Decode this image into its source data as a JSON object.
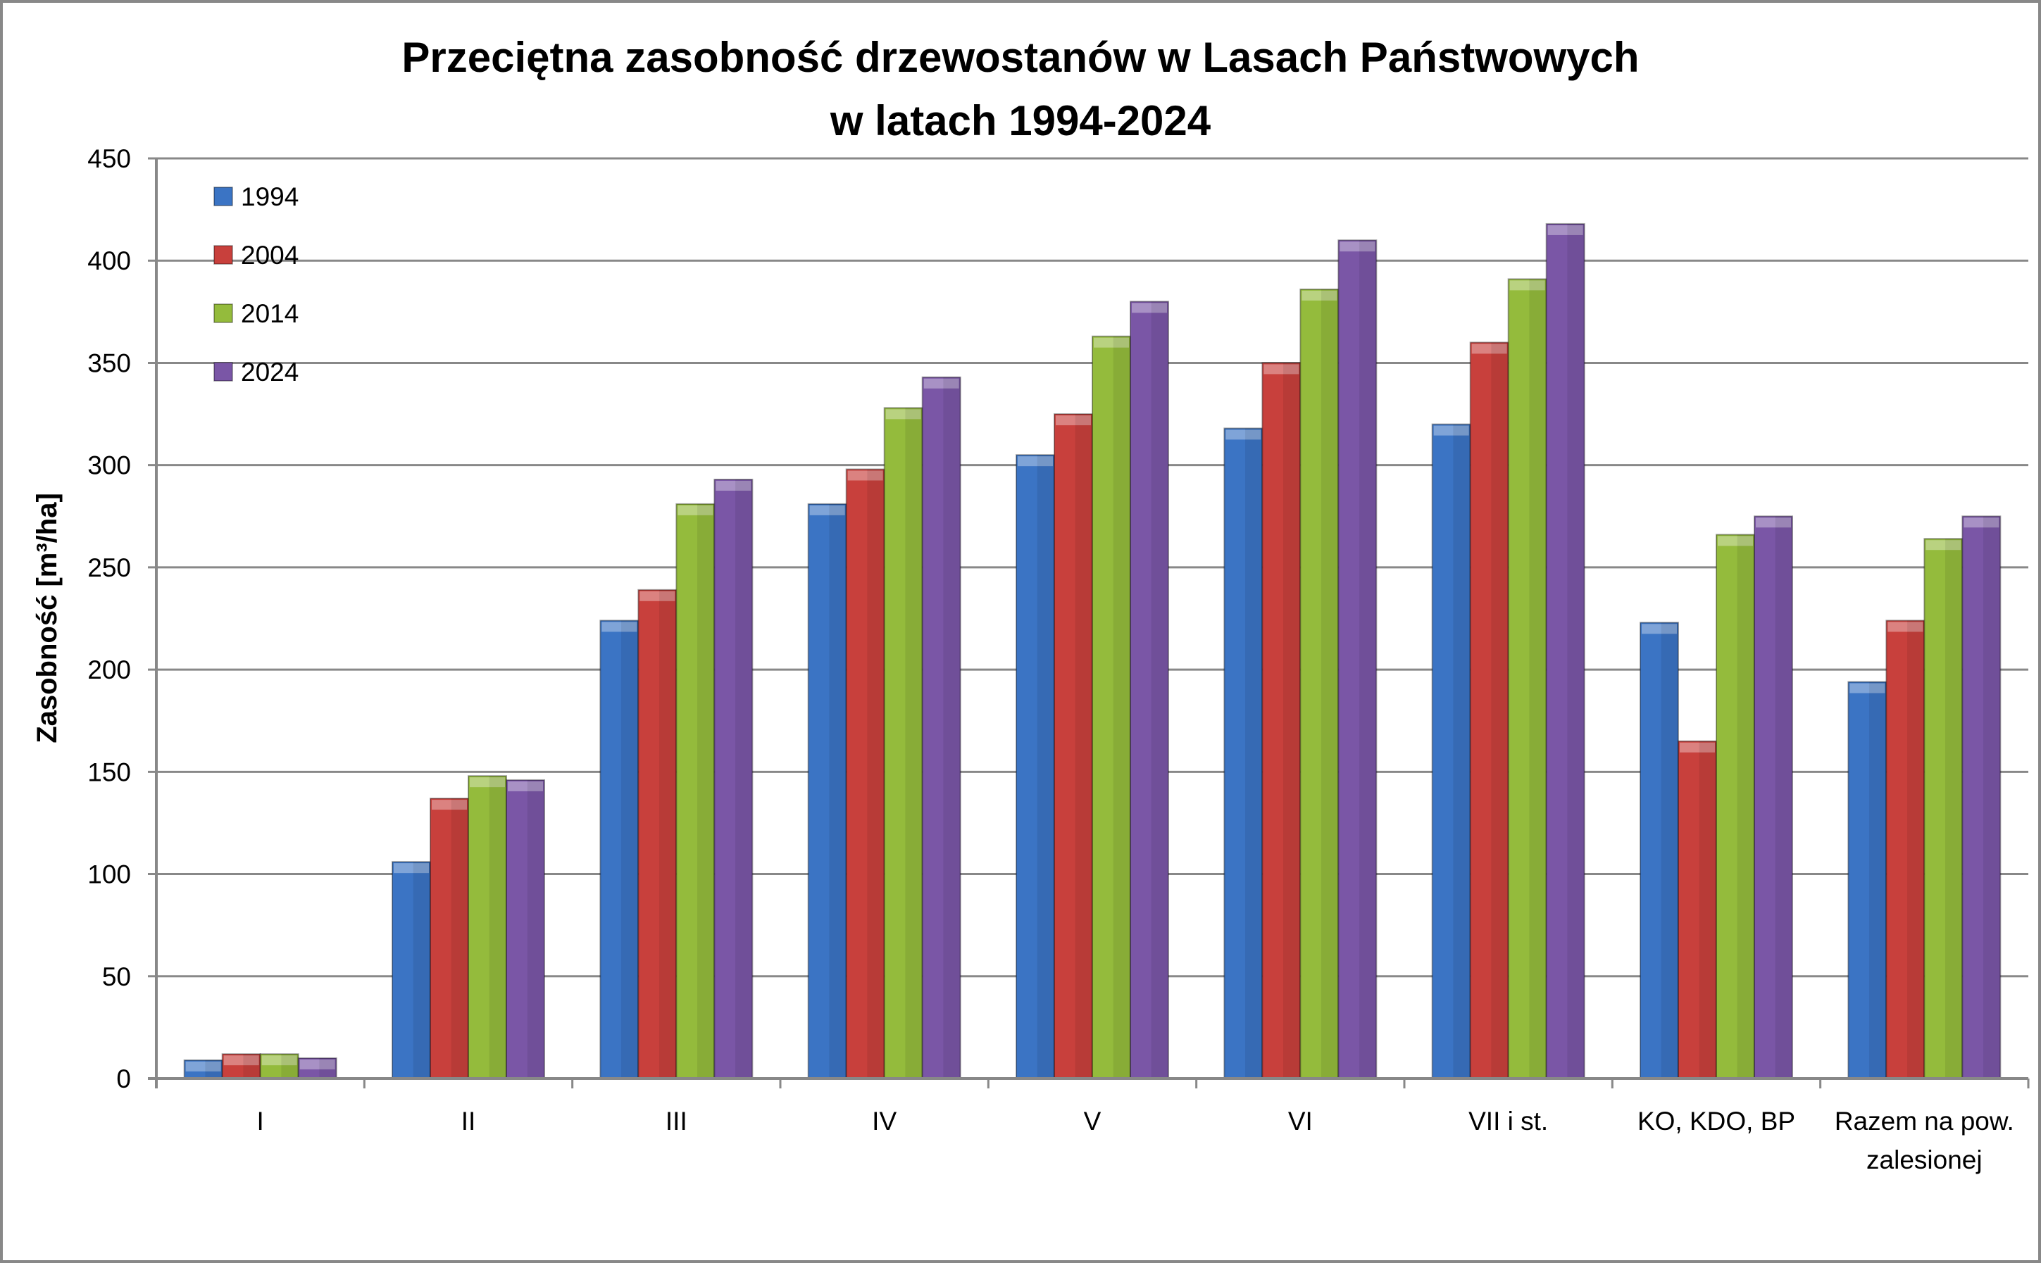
{
  "chart_data": {
    "type": "bar",
    "title": [
      "Przeciętna zasobność drzewostanów w Lasach Państwowych",
      "w latach 1994-2024"
    ],
    "xlabel": "",
    "ylabel": "Zasobność [m³/ha]",
    "ylim": [
      0,
      450
    ],
    "yticks": [
      0,
      50,
      100,
      150,
      200,
      250,
      300,
      350,
      400,
      450
    ],
    "grid": true,
    "legend": "top-left",
    "categories": [
      [
        "I"
      ],
      [
        "II"
      ],
      [
        "III"
      ],
      [
        "IV"
      ],
      [
        "V"
      ],
      [
        "VI"
      ],
      [
        "VII i st."
      ],
      [
        "KO, KDO, BP"
      ],
      [
        "Razem na pow.",
        "zalesionej"
      ]
    ],
    "series": [
      {
        "name": "1994",
        "color": "#3b74c4",
        "values": [
          9,
          106,
          224,
          281,
          305,
          318,
          320,
          223,
          194
        ]
      },
      {
        "name": "2004",
        "color": "#c8403c",
        "values": [
          12,
          137,
          239,
          298,
          325,
          350,
          360,
          165,
          224
        ]
      },
      {
        "name": "2014",
        "color": "#94bb3c",
        "values": [
          12,
          148,
          281,
          328,
          363,
          386,
          391,
          266,
          264
        ]
      },
      {
        "name": "2024",
        "color": "#7a56a6",
        "values": [
          10,
          146,
          293,
          343,
          380,
          410,
          418,
          275,
          275
        ]
      }
    ]
  }
}
